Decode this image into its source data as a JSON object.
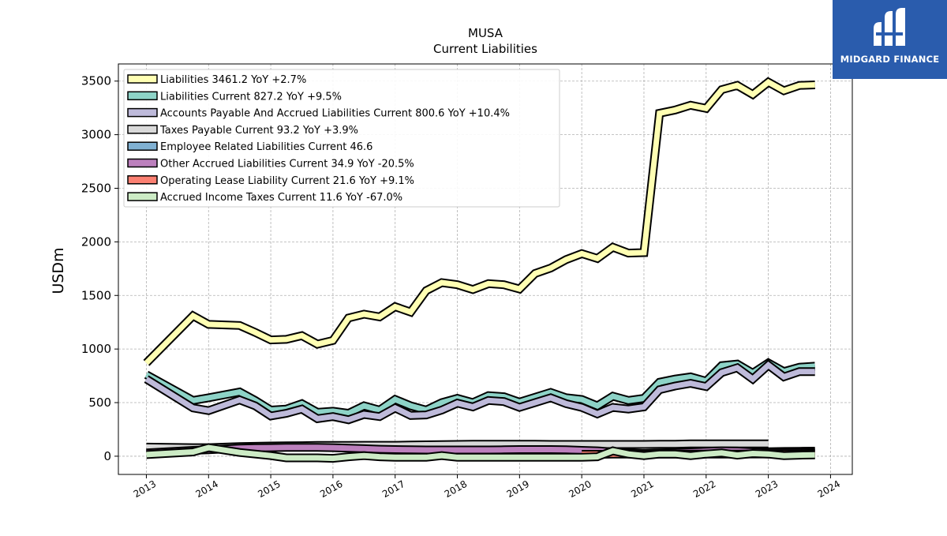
{
  "brand": {
    "logo_text": "MIDGARD FINANCE"
  },
  "chart_data": {
    "type": "area",
    "title": "MUSA",
    "subtitle": "Current  Liabilities",
    "xlabel": "",
    "ylabel": "USDm",
    "xlim": [
      2012.55,
      2024.35
    ],
    "ylim": [
      -170,
      3660
    ],
    "yticks": [
      0,
      500,
      1000,
      1500,
      2000,
      2500,
      3000,
      3500
    ],
    "xticks": [
      "2013",
      "2014",
      "2015",
      "2016",
      "2017",
      "2018",
      "2019",
      "2020",
      "2021",
      "2022",
      "2023",
      "2024"
    ],
    "grid": true,
    "legend_position": "upper left",
    "x": [
      2013.0,
      2013.75,
      2014.0,
      2014.5,
      2014.75,
      2015.0,
      2015.25,
      2015.5,
      2015.75,
      2016.0,
      2016.25,
      2016.5,
      2016.75,
      2017.0,
      2017.25,
      2017.5,
      2017.75,
      2018.0,
      2018.25,
      2018.5,
      2018.75,
      2019.0,
      2019.25,
      2019.5,
      2019.75,
      2020.0,
      2020.25,
      2020.5,
      2020.75,
      2021.0,
      2021.25,
      2021.5,
      2021.75,
      2022.0,
      2022.25,
      2022.5,
      2022.75,
      2023.0,
      2023.25,
      2023.5,
      2023.75
    ],
    "series": [
      {
        "name": "Liabilities",
        "legend": "Liabilities  3461.2 YoY +2.7%",
        "color": "#ffffb3",
        "values": [
          870,
          1310,
          1230,
          1220,
          1155,
          1085,
          1090,
          1125,
          1045,
          1080,
          1290,
          1325,
          1300,
          1395,
          1345,
          1545,
          1620,
          1600,
          1555,
          1610,
          1600,
          1560,
          1705,
          1755,
          1835,
          1890,
          1845,
          1950,
          1895,
          1900,
          3200,
          3230,
          3275,
          3245,
          3420,
          3460,
          3375,
          3490,
          3410,
          3460,
          3465
        ]
      },
      {
        "name": "Liabilities Current",
        "legend": "Liabilities Current  827.2 YoY +9.5%",
        "color": "#8dd3c7",
        "values": [
          760,
          520,
          545,
          600,
          520,
          430,
          440,
          490,
          410,
          420,
          400,
          470,
          430,
          530,
          470,
          430,
          500,
          540,
          500,
          565,
          555,
          505,
          550,
          595,
          545,
          530,
          470,
          560,
          520,
          540,
          690,
          720,
          740,
          700,
          845,
          860,
          775,
          870,
          790,
          830,
          840
        ]
      },
      {
        "name": "Accounts Payable And Accrued Liabilities Current",
        "legend": "Accounts Payable And Accrued Liabilities Current  800.6 YoY +10.4%",
        "color": "#bebada",
        "values": [
          720,
          450,
          425,
          525,
          470,
          375,
          400,
          440,
          350,
          370,
          340,
          390,
          370,
          450,
          380,
          385,
          430,
          495,
          460,
          520,
          510,
          455,
          500,
          545,
          490,
          455,
          395,
          455,
          440,
          460,
          620,
          655,
          680,
          650,
          780,
          825,
          720,
          850,
          740,
          790,
          790
        ]
      },
      {
        "name": "Taxes Payable Current",
        "legend": "Taxes Payable Current  93.2 YoY +3.9%",
        "color": "#d9d9d9",
        "values": [
          85,
          80,
          80,
          90,
          92,
          95,
          97,
          98,
          100,
          100,
          100,
          102,
          102,
          102,
          104,
          106,
          108,
          110,
          112,
          112,
          112,
          112,
          112,
          110,
          110,
          110,
          110,
          110,
          110,
          110,
          112,
          112,
          115,
          115,
          115,
          115,
          115,
          115,
          null,
          null,
          null
        ]
      },
      {
        "name": "Employee Related Liabilities Current",
        "legend": "Employee Related Liabilities Current  46.6",
        "color": "#80b1d3",
        "values": [
          null,
          null,
          null,
          null,
          null,
          null,
          null,
          null,
          null,
          null,
          null,
          null,
          null,
          null,
          null,
          null,
          null,
          null,
          null,
          null,
          null,
          null,
          null,
          null,
          null,
          null,
          null,
          null,
          null,
          null,
          null,
          null,
          null,
          null,
          null,
          null,
          38,
          42,
          44,
          46,
          47
        ]
      },
      {
        "name": "Other Accrued Liabilities Current",
        "legend": "Other Accrued Liabilities Current  34.9 YoY -20.5%",
        "color": "#bc80bd",
        "values": [
          30,
          55,
          60,
          75,
          78,
          80,
          82,
          82,
          82,
          80,
          75,
          70,
          65,
          62,
          60,
          58,
          58,
          58,
          58,
          58,
          60,
          62,
          62,
          62,
          60,
          55,
          50,
          40,
          30,
          25,
          30,
          35,
          40,
          45,
          50,
          48,
          40,
          35,
          35,
          35,
          35
        ]
      },
      {
        "name": "Operating Lease Liability Current",
        "legend": "Operating Lease Liability Current  21.6 YoY +9.1%",
        "color": "#fb8072",
        "values": [
          null,
          null,
          null,
          null,
          null,
          null,
          null,
          null,
          null,
          null,
          null,
          null,
          null,
          null,
          null,
          null,
          null,
          null,
          null,
          null,
          null,
          null,
          null,
          null,
          null,
          18,
          18,
          19,
          19,
          19,
          19,
          20,
          20,
          20,
          20,
          20,
          21,
          21,
          21,
          21,
          22
        ]
      },
      {
        "name": "Accrued Income Taxes Current",
        "legend": "Accrued Income Taxes Current  11.6 YoY -67.0%",
        "color": "#ccebc5",
        "values": [
          15,
          40,
          80,
          35,
          20,
          5,
          -15,
          -15,
          -15,
          -20,
          -5,
          5,
          -5,
          -10,
          -10,
          -10,
          5,
          -10,
          -10,
          -10,
          -10,
          -10,
          -10,
          -10,
          -10,
          -10,
          -5,
          50,
          20,
          5,
          20,
          20,
          5,
          20,
          30,
          10,
          25,
          20,
          5,
          10,
          12
        ]
      }
    ]
  }
}
